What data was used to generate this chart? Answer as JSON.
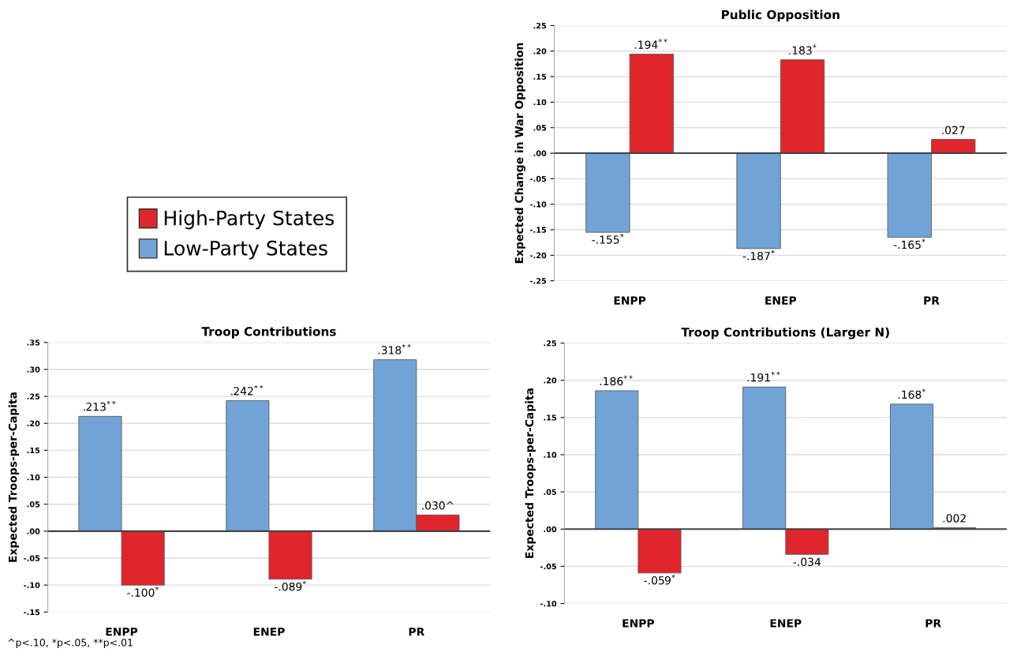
{
  "chart_data": [
    {
      "type": "bar",
      "title": "Public Opposition",
      "ylabel": "Expected Change in War Opposition",
      "categories": [
        "ENPP",
        "ENEP",
        "PR"
      ],
      "series": [
        {
          "name": "Low-Party States",
          "color": "#72a3d6",
          "values": [
            -0.155,
            -0.187,
            -0.165
          ],
          "value_labels": [
            "-.155$^{*}$",
            "-.187$^{*}$",
            "-.165$^{*}$"
          ]
        },
        {
          "name": "High-Party States",
          "color": "#e0262c",
          "values": [
            0.194,
            0.183,
            0.027
          ],
          "value_labels": [
            ".194$^{**}$",
            ".183$^{*}$",
            ".027"
          ]
        }
      ],
      "ylim": [
        -0.25,
        0.25
      ],
      "yticks": [
        {
          "value": -0.25,
          "label": "-.25"
        },
        {
          "value": -0.2,
          "label": "-.20"
        },
        {
          "value": -0.15,
          "label": "-.15"
        },
        {
          "value": -0.1,
          "label": "-.10"
        },
        {
          "value": -0.05,
          "label": "-.05"
        },
        {
          "value": 0,
          "label": ".00"
        },
        {
          "value": 0.05,
          "label": ".05"
        },
        {
          "value": 0.1,
          "label": ".10"
        },
        {
          "value": 0.15,
          "label": ".15"
        },
        {
          "value": 0.2,
          "label": ".20"
        },
        {
          "value": 0.25,
          "label": ".25"
        }
      ],
      "grid": "y",
      "legend": "left"
    },
    {
      "type": "bar",
      "title": "Troop Contributions",
      "ylabel": "Expected Troops-per-Capita",
      "categories": [
        "ENPP",
        "ENEP",
        "PR"
      ],
      "series": [
        {
          "color": "#72a3d6",
          "values": [
            0.213,
            0.242,
            0.318
          ],
          "value_labels": [
            ".213$^{**}$",
            ".242$^{**}$",
            ".318$^{**}$"
          ]
        },
        {
          "color": "#e0262c",
          "values": [
            -0.1,
            -0.089,
            0.03
          ],
          "value_labels": [
            "-.100$^{*}$",
            "-.089$^{*}$",
            ".030^"
          ]
        }
      ],
      "ylim": [
        -0.15,
        0.35
      ],
      "yticks": [
        {
          "value": -0.15,
          "label": "-.15"
        },
        {
          "value": -0.1,
          "label": "-.10"
        },
        {
          "value": -0.05,
          "label": "-.05"
        },
        {
          "value": 0,
          "label": ".00"
        },
        {
          "value": 0.05,
          "label": ".05"
        },
        {
          "value": 0.1,
          "label": ".10"
        },
        {
          "value": 0.15,
          "label": ".15"
        },
        {
          "value": 0.2,
          "label": ".20"
        },
        {
          "value": 0.25,
          "label": ".25"
        },
        {
          "value": 0.3,
          "label": ".30"
        },
        {
          "value": 0.35,
          "label": ".35"
        }
      ],
      "grid": "y",
      "annotations": [
        "^p<.10, *p<.05, **p<.01"
      ]
    },
    {
      "type": "bar",
      "title": "Troop Contributions (Larger N)",
      "ylabel": "Expected Troops-per-Capita",
      "categories": [
        "ENPP",
        "ENEP",
        "PR"
      ],
      "series": [
        {
          "color": "#72a3d6",
          "values": [
            0.186,
            0.191,
            0.168
          ],
          "value_labels": [
            ".186$^{**}$",
            ".191$^{**}$",
            ".168$^{*}$"
          ]
        },
        {
          "color": "#e0262c",
          "values": [
            -0.059,
            -0.034,
            0.002
          ],
          "value_labels": [
            "-.059$^{*}$",
            "-.034",
            ".002"
          ]
        }
      ],
      "ylim": [
        -0.1,
        0.25
      ],
      "yticks": [
        {
          "value": -0.1,
          "label": "-.10"
        },
        {
          "value": -0.05,
          "label": "-.05"
        },
        {
          "value": 0,
          "label": ".00"
        },
        {
          "value": 0.05,
          "label": ".05"
        },
        {
          "value": 0.1,
          "label": ".10"
        },
        {
          "value": 0.15,
          "label": ".15"
        },
        {
          "value": 0.2,
          "label": ".20"
        },
        {
          "value": 0.25,
          "label": ".25"
        }
      ],
      "grid": "y"
    }
  ]
}
